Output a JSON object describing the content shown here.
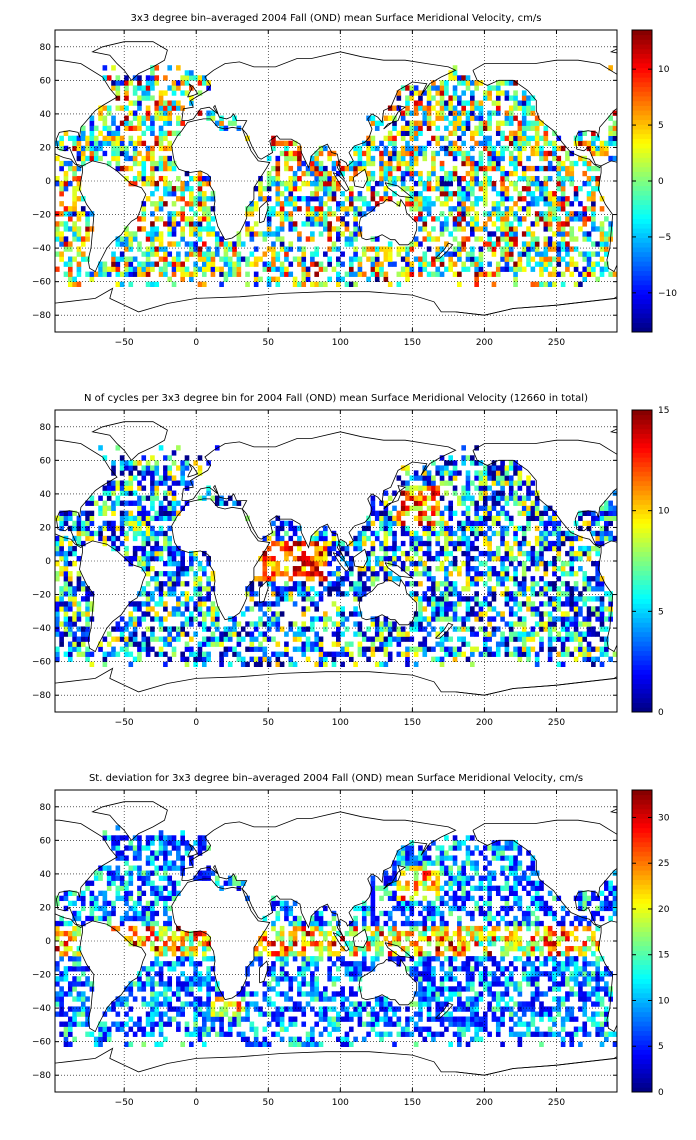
{
  "chart_data": [
    {
      "type": "heatmap",
      "title": "3x3 degree bin–averaged 2004 Fall (OND) mean Surface Meridional Velocity, cm/s",
      "xlabel": "",
      "ylabel": "",
      "xlim": [
        -98,
        292
      ],
      "ylim": [
        -90,
        90
      ],
      "xticks": [
        -50,
        0,
        50,
        100,
        150,
        200,
        250
      ],
      "xtick_labels": [
        "−50",
        "0",
        "50",
        "100",
        "150",
        "200",
        "250"
      ],
      "yticks": [
        80,
        60,
        40,
        20,
        0,
        -20,
        -40,
        -60,
        -80
      ],
      "ytick_labels": [
        "80",
        "60",
        "40",
        "20",
        "0",
        "−20",
        "−40",
        "−60",
        "−80"
      ],
      "grid": true,
      "colormap": "jet",
      "clim": [
        -13.5,
        13.5
      ],
      "colorbar_ticks": [
        10,
        5,
        0,
        -5,
        -10
      ],
      "colorbar_tick_labels": [
        "10",
        "5",
        "0",
        "−5",
        "−10"
      ],
      "bin_degrees": 3,
      "pattern": "velocity",
      "seed": 11
    },
    {
      "type": "heatmap",
      "title": "N of cycles per 3x3 degree bin for 2004 Fall (OND) mean Surface Meridional Velocity (12660 in total)",
      "xlabel": "",
      "ylabel": "",
      "xlim": [
        -98,
        292
      ],
      "ylim": [
        -90,
        90
      ],
      "xticks": [
        -50,
        0,
        50,
        100,
        150,
        200,
        250
      ],
      "xtick_labels": [
        "−50",
        "0",
        "50",
        "100",
        "150",
        "200",
        "250"
      ],
      "yticks": [
        80,
        60,
        40,
        20,
        0,
        -20,
        -40,
        -60,
        -80
      ],
      "ytick_labels": [
        "80",
        "60",
        "40",
        "20",
        "0",
        "−20",
        "−40",
        "−60",
        "−80"
      ],
      "grid": true,
      "colormap": "jet",
      "clim": [
        0,
        15
      ],
      "colorbar_ticks": [
        15,
        10,
        5,
        0
      ],
      "colorbar_tick_labels": [
        "15",
        "10",
        "5",
        "0"
      ],
      "bin_degrees": 3,
      "pattern": "count",
      "seed": 23
    },
    {
      "type": "heatmap",
      "title": "St. deviation for 3x3 degree bin–averaged 2004 Fall (OND) mean Surface Meridional Velocity, cm/s",
      "xlabel": "",
      "ylabel": "",
      "xlim": [
        -98,
        292
      ],
      "ylim": [
        -90,
        90
      ],
      "xticks": [
        -50,
        0,
        50,
        100,
        150,
        200,
        250
      ],
      "xtick_labels": [
        "−50",
        "0",
        "50",
        "100",
        "150",
        "200",
        "250"
      ],
      "yticks": [
        80,
        60,
        40,
        20,
        0,
        -20,
        -40,
        -60,
        -80
      ],
      "ytick_labels": [
        "80",
        "60",
        "40",
        "20",
        "0",
        "−20",
        "−40",
        "−60",
        "−80"
      ],
      "grid": true,
      "colormap": "jet",
      "clim": [
        0,
        33
      ],
      "colorbar_ticks": [
        30,
        25,
        20,
        15,
        10,
        5,
        0
      ],
      "colorbar_tick_labels": [
        "30",
        "25",
        "20",
        "15",
        "10",
        "5",
        "0"
      ],
      "bin_degrees": 3,
      "pattern": "stdev",
      "seed": 37
    }
  ]
}
